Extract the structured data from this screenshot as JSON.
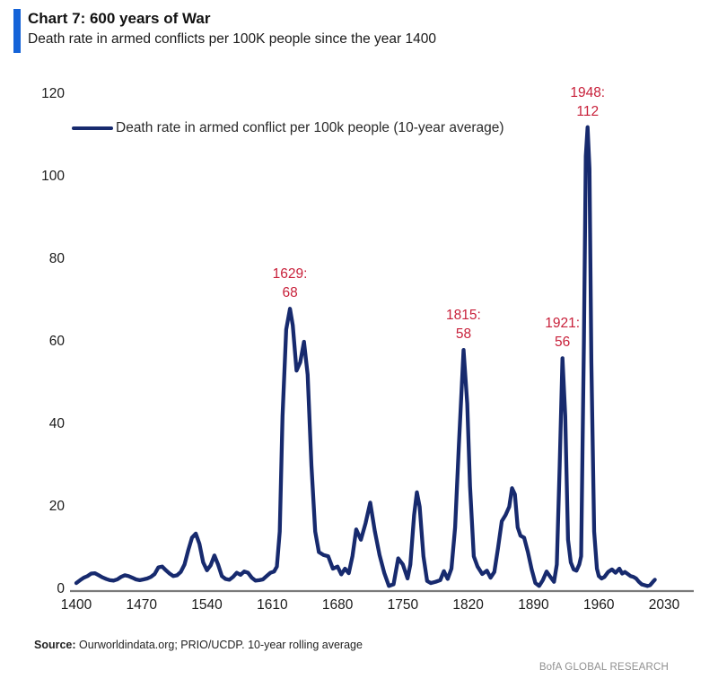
{
  "header": {
    "title": "Chart 7: 600 years of War",
    "subtitle": "Death rate in armed conflicts per 100K people since the year 1400"
  },
  "legend": {
    "label": "Death rate in armed conflict per 100k people (10-year average)"
  },
  "footer": {
    "source_label": "Source:",
    "source_text": "Ourworldindata.org; PRIO/UCDP. 10-year rolling average",
    "brand": "BofA GLOBAL RESEARCH"
  },
  "colors": {
    "line": "#172a6e",
    "annotation": "#c8203a",
    "accent_bar": "#1463d8",
    "axis": "#7a7a7a",
    "brand_text": "#8f8f8f"
  },
  "chart_data": {
    "type": "line",
    "title": "Chart 7: 600 years of War",
    "subtitle": "Death rate in armed conflicts per 100K people since the year 1400",
    "xlabel": "",
    "ylabel": "",
    "xlim": [
      1400,
      2030
    ],
    "ylim": [
      0,
      120
    ],
    "x_ticks": [
      1400,
      1470,
      1540,
      1610,
      1680,
      1750,
      1820,
      1890,
      1960,
      2030
    ],
    "y_ticks": [
      0,
      20,
      40,
      60,
      80,
      100,
      120
    ],
    "grid": false,
    "legend_position": "top-left",
    "annotations": [
      {
        "year": 1629,
        "value": 68,
        "label": "1629:",
        "value_label": "68"
      },
      {
        "year": 1815,
        "value": 58,
        "label": "1815:",
        "value_label": "58"
      },
      {
        "year": 1921,
        "value": 56,
        "label": "1921:",
        "value_label": "56"
      },
      {
        "year": 1948,
        "value": 112,
        "label": "1948:",
        "value_label": "112"
      }
    ],
    "series": [
      {
        "name": "Death rate in armed conflict per 100k people (10-year average)",
        "points": [
          [
            1400,
            1.5
          ],
          [
            1404,
            2.2
          ],
          [
            1408,
            2.8
          ],
          [
            1412,
            3.2
          ],
          [
            1416,
            3.8
          ],
          [
            1420,
            3.9
          ],
          [
            1424,
            3.4
          ],
          [
            1428,
            2.9
          ],
          [
            1432,
            2.5
          ],
          [
            1436,
            2.2
          ],
          [
            1440,
            2.1
          ],
          [
            1444,
            2.4
          ],
          [
            1448,
            3.0
          ],
          [
            1452,
            3.4
          ],
          [
            1456,
            3.2
          ],
          [
            1460,
            2.8
          ],
          [
            1464,
            2.4
          ],
          [
            1468,
            2.2
          ],
          [
            1472,
            2.4
          ],
          [
            1476,
            2.6
          ],
          [
            1480,
            3.0
          ],
          [
            1484,
            3.7
          ],
          [
            1488,
            5.3
          ],
          [
            1492,
            5.5
          ],
          [
            1496,
            4.6
          ],
          [
            1500,
            3.8
          ],
          [
            1504,
            3.2
          ],
          [
            1508,
            3.4
          ],
          [
            1512,
            4.2
          ],
          [
            1516,
            6.0
          ],
          [
            1520,
            9.5
          ],
          [
            1524,
            12.5
          ],
          [
            1528,
            13.5
          ],
          [
            1532,
            11.0
          ],
          [
            1536,
            6.5
          ],
          [
            1540,
            4.6
          ],
          [
            1544,
            5.8
          ],
          [
            1548,
            8.2
          ],
          [
            1552,
            6.0
          ],
          [
            1556,
            3.2
          ],
          [
            1560,
            2.5
          ],
          [
            1564,
            2.3
          ],
          [
            1568,
            3.0
          ],
          [
            1572,
            4.0
          ],
          [
            1576,
            3.5
          ],
          [
            1580,
            4.3
          ],
          [
            1584,
            4.0
          ],
          [
            1588,
            2.8
          ],
          [
            1592,
            2.1
          ],
          [
            1596,
            2.2
          ],
          [
            1600,
            2.4
          ],
          [
            1604,
            3.2
          ],
          [
            1608,
            4.0
          ],
          [
            1612,
            4.3
          ],
          [
            1615,
            5.5
          ],
          [
            1618,
            14
          ],
          [
            1621,
            42
          ],
          [
            1625,
            63
          ],
          [
            1629,
            68
          ],
          [
            1632,
            64
          ],
          [
            1636,
            53
          ],
          [
            1640,
            55
          ],
          [
            1644,
            60
          ],
          [
            1648,
            52
          ],
          [
            1652,
            30
          ],
          [
            1656,
            14
          ],
          [
            1660,
            9
          ],
          [
            1665,
            8.3
          ],
          [
            1670,
            8
          ],
          [
            1675,
            5
          ],
          [
            1680,
            5.5
          ],
          [
            1684,
            3.6
          ],
          [
            1688,
            5
          ],
          [
            1692,
            3.9
          ],
          [
            1696,
            8
          ],
          [
            1700,
            14.5
          ],
          [
            1705,
            12
          ],
          [
            1710,
            16
          ],
          [
            1715,
            21
          ],
          [
            1720,
            14
          ],
          [
            1725,
            8.3
          ],
          [
            1730,
            4
          ],
          [
            1735,
            0.8
          ],
          [
            1740,
            1.2
          ],
          [
            1745,
            7.5
          ],
          [
            1750,
            6
          ],
          [
            1755,
            2.6
          ],
          [
            1758,
            6
          ],
          [
            1762,
            18
          ],
          [
            1765,
            23.5
          ],
          [
            1768,
            20
          ],
          [
            1772,
            8
          ],
          [
            1776,
            2
          ],
          [
            1780,
            1.5
          ],
          [
            1785,
            1.8
          ],
          [
            1790,
            2.2
          ],
          [
            1794,
            4.4
          ],
          [
            1798,
            2.5
          ],
          [
            1802,
            5
          ],
          [
            1806,
            15
          ],
          [
            1810,
            35
          ],
          [
            1815,
            58
          ],
          [
            1819,
            45
          ],
          [
            1822,
            25
          ],
          [
            1826,
            8
          ],
          [
            1830,
            5.5
          ],
          [
            1835,
            3.7
          ],
          [
            1840,
            4.5
          ],
          [
            1844,
            2.8
          ],
          [
            1848,
            4.2
          ],
          [
            1852,
            10
          ],
          [
            1856,
            16.5
          ],
          [
            1860,
            18
          ],
          [
            1864,
            20
          ],
          [
            1867,
            24.5
          ],
          [
            1870,
            23
          ],
          [
            1873,
            15
          ],
          [
            1876,
            13
          ],
          [
            1880,
            12.5
          ],
          [
            1884,
            9
          ],
          [
            1888,
            4.8
          ],
          [
            1892,
            1.5
          ],
          [
            1896,
            0.8
          ],
          [
            1900,
            2.2
          ],
          [
            1904,
            4.3
          ],
          [
            1908,
            3
          ],
          [
            1912,
            1.8
          ],
          [
            1915,
            6
          ],
          [
            1918,
            30
          ],
          [
            1921,
            56
          ],
          [
            1924,
            42
          ],
          [
            1927,
            12
          ],
          [
            1930,
            6.5
          ],
          [
            1933,
            4.8
          ],
          [
            1936,
            4.5
          ],
          [
            1939,
            6
          ],
          [
            1941,
            8
          ],
          [
            1944,
            60
          ],
          [
            1946,
            105
          ],
          [
            1948,
            112
          ],
          [
            1950,
            102
          ],
          [
            1952,
            55
          ],
          [
            1955,
            14
          ],
          [
            1958,
            5
          ],
          [
            1960,
            3.2
          ],
          [
            1963,
            2.6
          ],
          [
            1966,
            3
          ],
          [
            1970,
            4.2
          ],
          [
            1974,
            4.8
          ],
          [
            1978,
            4
          ],
          [
            1982,
            5
          ],
          [
            1985,
            3.8
          ],
          [
            1988,
            4.2
          ],
          [
            1991,
            3.7
          ],
          [
            1994,
            3.2
          ],
          [
            1997,
            3
          ],
          [
            2000,
            2.6
          ],
          [
            2003,
            1.8
          ],
          [
            2006,
            1.2
          ],
          [
            2009,
            1
          ],
          [
            2012,
            0.8
          ],
          [
            2015,
            1
          ],
          [
            2018,
            1.8
          ],
          [
            2020,
            2.3
          ]
        ]
      }
    ]
  }
}
